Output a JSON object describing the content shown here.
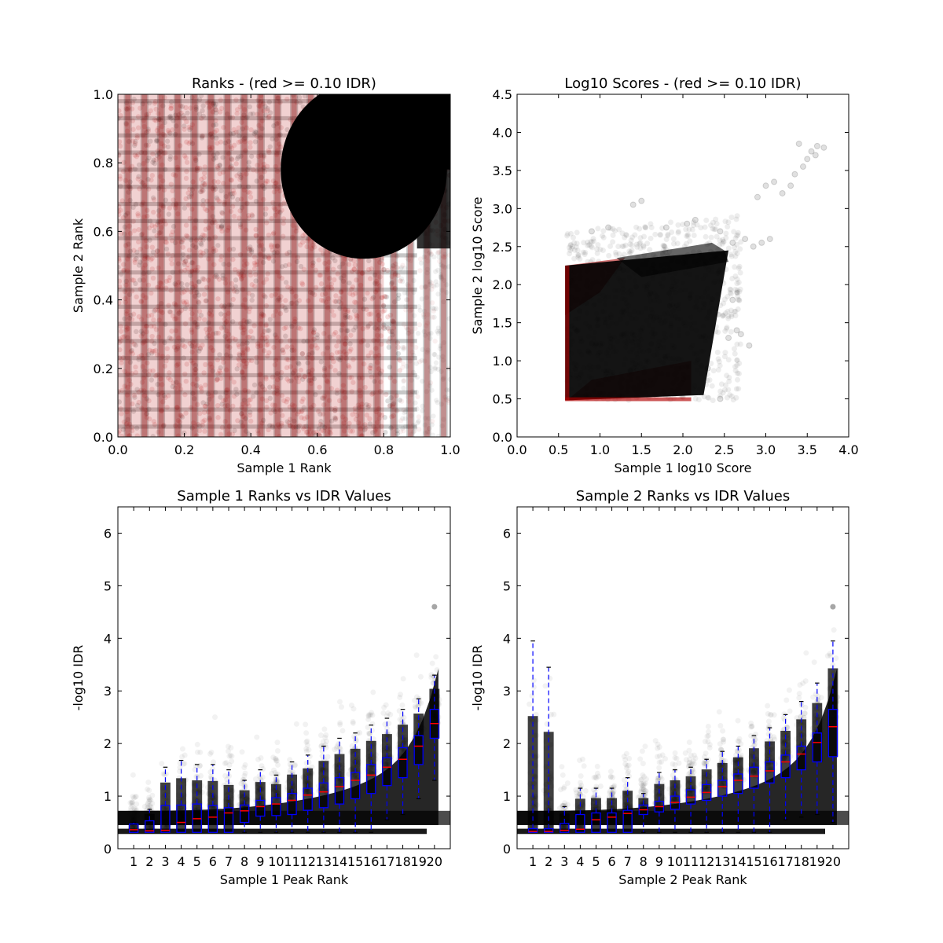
{
  "chart_data": [
    {
      "type": "scatter",
      "title": "Ranks - (red >= 0.10 IDR)",
      "xlabel": "Sample 1 Rank",
      "ylabel": "Sample 2 Rank",
      "xlim": [
        0.0,
        1.0
      ],
      "ylim": [
        0.0,
        1.0
      ],
      "xticks": [
        "0.0",
        "0.2",
        "0.4",
        "0.6",
        "0.8",
        "1.0"
      ],
      "yticks": [
        "0.0",
        "0.2",
        "0.4",
        "0.6",
        "0.8",
        "1.0"
      ],
      "grid": false,
      "series_colors": {
        "passing": "#000000",
        "failing": "#b00000"
      },
      "dense_region": {
        "x_center": 0.74,
        "y_center": 0.78,
        "x_radius": 0.25,
        "y_radius": 0.26
      },
      "bands": [
        0.03,
        0.08,
        0.13,
        0.18,
        0.23,
        0.28,
        0.33,
        0.38,
        0.43,
        0.48,
        0.53,
        0.58,
        0.63,
        0.68,
        0.73,
        0.78,
        0.83,
        0.88,
        0.93,
        0.98
      ]
    },
    {
      "type": "scatter",
      "title": "Log10 Scores - (red >= 0.10 IDR)",
      "xlabel": "Sample 1 log10 Score",
      "ylabel": "Sample 2 log10 Score",
      "xlim": [
        0.0,
        4.0
      ],
      "ylim": [
        0.0,
        4.5
      ],
      "xticks": [
        "0.0",
        "0.5",
        "1.0",
        "1.5",
        "2.0",
        "2.5",
        "3.0",
        "3.5",
        "4.0"
      ],
      "yticks": [
        "0.0",
        "0.5",
        "1.0",
        "1.5",
        "2.0",
        "2.5",
        "3.0",
        "3.5",
        "4.0",
        "4.5"
      ],
      "grid": false,
      "series_colors": {
        "passing": "#000000",
        "failing": "#b00000"
      },
      "core_polygon": [
        [
          0.58,
          0.48
        ],
        [
          2.25,
          0.55
        ],
        [
          2.55,
          2.45
        ],
        [
          0.58,
          2.25
        ]
      ],
      "outliers": [
        [
          2.9,
          3.15
        ],
        [
          3.0,
          3.3
        ],
        [
          3.1,
          3.35
        ],
        [
          3.2,
          3.2
        ],
        [
          3.35,
          3.45
        ],
        [
          3.45,
          3.55
        ],
        [
          3.5,
          3.65
        ],
        [
          3.55,
          3.75
        ],
        [
          3.6,
          3.7
        ],
        [
          3.62,
          3.82
        ],
        [
          3.7,
          3.8
        ],
        [
          3.4,
          3.85
        ],
        [
          3.3,
          3.3
        ],
        [
          2.95,
          2.55
        ],
        [
          2.75,
          2.6
        ],
        [
          2.85,
          2.5
        ],
        [
          2.6,
          2.55
        ],
        [
          2.45,
          2.7
        ],
        [
          1.5,
          3.1
        ],
        [
          1.4,
          3.05
        ],
        [
          2.55,
          1.3
        ],
        [
          2.65,
          1.4
        ],
        [
          2.3,
          0.9
        ],
        [
          2.45,
          0.5
        ],
        [
          2.7,
          1.35
        ],
        [
          2.8,
          1.2
        ],
        [
          2.6,
          1.8
        ],
        [
          1.1,
          2.75
        ],
        [
          0.9,
          2.7
        ],
        [
          2.15,
          2.85
        ],
        [
          1.8,
          2.75
        ],
        [
          2.05,
          2.8
        ],
        [
          3.05,
          2.6
        ]
      ]
    },
    {
      "type": "box",
      "title": "Sample 1 Ranks vs IDR Values",
      "xlabel": "Sample 1 Peak Rank",
      "ylabel": "-log10 IDR",
      "ylim": [
        0,
        6.5
      ],
      "categories": [
        "1",
        "2",
        "3",
        "4",
        "5",
        "6",
        "7",
        "8",
        "9",
        "10",
        "11",
        "12",
        "13",
        "14",
        "15",
        "16",
        "17",
        "18",
        "19",
        "20"
      ],
      "yticks": [
        "0",
        "1",
        "2",
        "3",
        "4",
        "5",
        "6"
      ],
      "grid": false,
      "box_color": "#0000ff",
      "median_color": "#ff0000",
      "boxes": [
        {
          "q1": 0.31,
          "median": 0.36,
          "q3": 0.47,
          "wmin": 0.31,
          "wmax": 0.5
        },
        {
          "q1": 0.31,
          "median": 0.34,
          "q3": 0.53,
          "wmin": 0.31,
          "wmax": 0.75
        },
        {
          "q1": 0.31,
          "median": 0.35,
          "q3": 0.82,
          "wmin": 0.31,
          "wmax": 1.55
        },
        {
          "q1": 0.31,
          "median": 0.5,
          "q3": 0.83,
          "wmin": 0.31,
          "wmax": 1.68
        },
        {
          "q1": 0.31,
          "median": 0.57,
          "q3": 0.85,
          "wmin": 0.31,
          "wmax": 1.6
        },
        {
          "q1": 0.31,
          "median": 0.6,
          "q3": 0.82,
          "wmin": 0.31,
          "wmax": 1.6
        },
        {
          "q1": 0.31,
          "median": 0.68,
          "q3": 0.78,
          "wmin": 0.31,
          "wmax": 1.5
        },
        {
          "q1": 0.5,
          "median": 0.72,
          "q3": 0.83,
          "wmin": 0.31,
          "wmax": 1.3
        },
        {
          "q1": 0.62,
          "median": 0.8,
          "q3": 0.92,
          "wmin": 0.31,
          "wmax": 1.5
        },
        {
          "q1": 0.63,
          "median": 0.85,
          "q3": 0.97,
          "wmin": 0.31,
          "wmax": 1.4
        },
        {
          "q1": 0.65,
          "median": 0.92,
          "q3": 1.05,
          "wmin": 0.31,
          "wmax": 1.65
        },
        {
          "q1": 0.73,
          "median": 1.02,
          "q3": 1.15,
          "wmin": 0.31,
          "wmax": 1.78
        },
        {
          "q1": 0.78,
          "median": 1.08,
          "q3": 1.25,
          "wmin": 0.31,
          "wmax": 1.95
        },
        {
          "q1": 0.85,
          "median": 1.18,
          "q3": 1.35,
          "wmin": 0.31,
          "wmax": 2.1
        },
        {
          "q1": 0.95,
          "median": 1.3,
          "q3": 1.45,
          "wmin": 0.31,
          "wmax": 2.2
        },
        {
          "q1": 1.05,
          "median": 1.4,
          "q3": 1.6,
          "wmin": 0.31,
          "wmax": 2.35
        },
        {
          "q1": 1.2,
          "median": 1.55,
          "q3": 1.73,
          "wmin": 0.55,
          "wmax": 2.48
        },
        {
          "q1": 1.35,
          "median": 1.7,
          "q3": 1.92,
          "wmin": 0.65,
          "wmax": 2.65
        },
        {
          "q1": 1.6,
          "median": 1.95,
          "q3": 2.15,
          "wmin": 0.95,
          "wmax": 2.85
        },
        {
          "q1": 2.1,
          "median": 2.38,
          "q3": 2.65,
          "wmin": 1.3,
          "wmax": 3.3
        }
      ],
      "outlier_point": {
        "category": 20,
        "y": 4.6
      }
    },
    {
      "type": "box",
      "title": "Sample 2 Ranks vs IDR Values",
      "xlabel": "Sample 2 Peak Rank",
      "ylabel": "-log10 IDR",
      "ylim": [
        0,
        6.5
      ],
      "categories": [
        "1",
        "2",
        "3",
        "4",
        "5",
        "6",
        "7",
        "8",
        "9",
        "10",
        "11",
        "12",
        "13",
        "14",
        "15",
        "16",
        "17",
        "18",
        "19",
        "20"
      ],
      "yticks": [
        "0",
        "1",
        "2",
        "3",
        "4",
        "5",
        "6"
      ],
      "grid": false,
      "box_color": "#0000ff",
      "median_color": "#ff0000",
      "boxes": [
        {
          "q1": 0.31,
          "median": 0.33,
          "q3": 0.38,
          "wmin": 0.31,
          "wmax": 3.95
        },
        {
          "q1": 0.31,
          "median": 0.33,
          "q3": 0.38,
          "wmin": 0.31,
          "wmax": 3.45
        },
        {
          "q1": 0.31,
          "median": 0.35,
          "q3": 0.48,
          "wmin": 0.31,
          "wmax": 0.8
        },
        {
          "q1": 0.31,
          "median": 0.37,
          "q3": 0.65,
          "wmin": 0.31,
          "wmax": 1.15
        },
        {
          "q1": 0.31,
          "median": 0.55,
          "q3": 0.68,
          "wmin": 0.31,
          "wmax": 1.15
        },
        {
          "q1": 0.31,
          "median": 0.6,
          "q3": 0.68,
          "wmin": 0.31,
          "wmax": 1.15
        },
        {
          "q1": 0.31,
          "median": 0.67,
          "q3": 0.73,
          "wmin": 0.31,
          "wmax": 1.35
        },
        {
          "q1": 0.65,
          "median": 0.74,
          "q3": 0.83,
          "wmin": 0.31,
          "wmax": 1.05
        },
        {
          "q1": 0.7,
          "median": 0.8,
          "q3": 0.9,
          "wmin": 0.31,
          "wmax": 1.45
        },
        {
          "q1": 0.75,
          "median": 0.88,
          "q3": 1.0,
          "wmin": 0.31,
          "wmax": 1.5
        },
        {
          "q1": 0.85,
          "median": 0.98,
          "q3": 1.12,
          "wmin": 0.31,
          "wmax": 1.55
        },
        {
          "q1": 0.92,
          "median": 1.07,
          "q3": 1.22,
          "wmin": 0.31,
          "wmax": 1.7
        },
        {
          "q1": 1.0,
          "median": 1.18,
          "q3": 1.3,
          "wmin": 0.31,
          "wmax": 1.85
        },
        {
          "q1": 1.05,
          "median": 1.3,
          "q3": 1.42,
          "wmin": 0.31,
          "wmax": 1.95
        },
        {
          "q1": 1.15,
          "median": 1.38,
          "q3": 1.55,
          "wmin": 0.31,
          "wmax": 2.15
        },
        {
          "q1": 1.25,
          "median": 1.48,
          "q3": 1.65,
          "wmin": 0.31,
          "wmax": 2.3
        },
        {
          "q1": 1.35,
          "median": 1.65,
          "q3": 1.78,
          "wmin": 0.55,
          "wmax": 2.55
        },
        {
          "q1": 1.5,
          "median": 1.8,
          "q3": 1.95,
          "wmin": 0.6,
          "wmax": 2.8
        },
        {
          "q1": 1.65,
          "median": 2.02,
          "q3": 2.2,
          "wmin": 0.65,
          "wmax": 3.15
        },
        {
          "q1": 1.75,
          "median": 2.32,
          "q3": 2.65,
          "wmin": 0.5,
          "wmax": 3.95
        }
      ],
      "outlier_point": {
        "category": 20,
        "y": 4.6
      }
    }
  ]
}
